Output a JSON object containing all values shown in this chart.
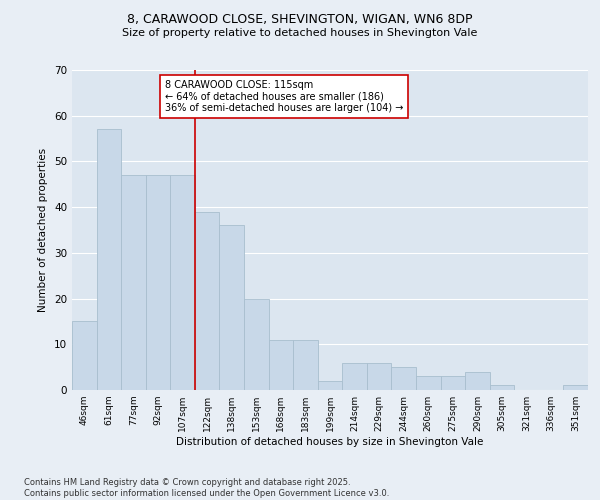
{
  "title1": "8, CARAWOOD CLOSE, SHEVINGTON, WIGAN, WN6 8DP",
  "title2": "Size of property relative to detached houses in Shevington Vale",
  "xlabel": "Distribution of detached houses by size in Shevington Vale",
  "ylabel": "Number of detached properties",
  "categories": [
    "46sqm",
    "61sqm",
    "77sqm",
    "92sqm",
    "107sqm",
    "122sqm",
    "138sqm",
    "153sqm",
    "168sqm",
    "183sqm",
    "199sqm",
    "214sqm",
    "229sqm",
    "244sqm",
    "260sqm",
    "275sqm",
    "290sqm",
    "305sqm",
    "321sqm",
    "336sqm",
    "351sqm"
  ],
  "values": [
    15,
    57,
    47,
    47,
    47,
    39,
    36,
    20,
    11,
    11,
    2,
    6,
    6,
    5,
    3,
    3,
    4,
    1,
    0,
    0,
    1
  ],
  "bar_color": "#c8d8e8",
  "bar_edge_color": "#a8bece",
  "vline_color": "#cc0000",
  "annotation_text": "8 CARAWOOD CLOSE: 115sqm\n← 64% of detached houses are smaller (186)\n36% of semi-detached houses are larger (104) →",
  "annotation_box_color": "#ffffff",
  "annotation_box_edge": "#cc0000",
  "ylim": [
    0,
    70
  ],
  "yticks": [
    0,
    10,
    20,
    30,
    40,
    50,
    60,
    70
  ],
  "bg_color": "#e8eef5",
  "plot_bg_color": "#dce6f0",
  "grid_color": "#ffffff",
  "footer": "Contains HM Land Registry data © Crown copyright and database right 2025.\nContains public sector information licensed under the Open Government Licence v3.0."
}
